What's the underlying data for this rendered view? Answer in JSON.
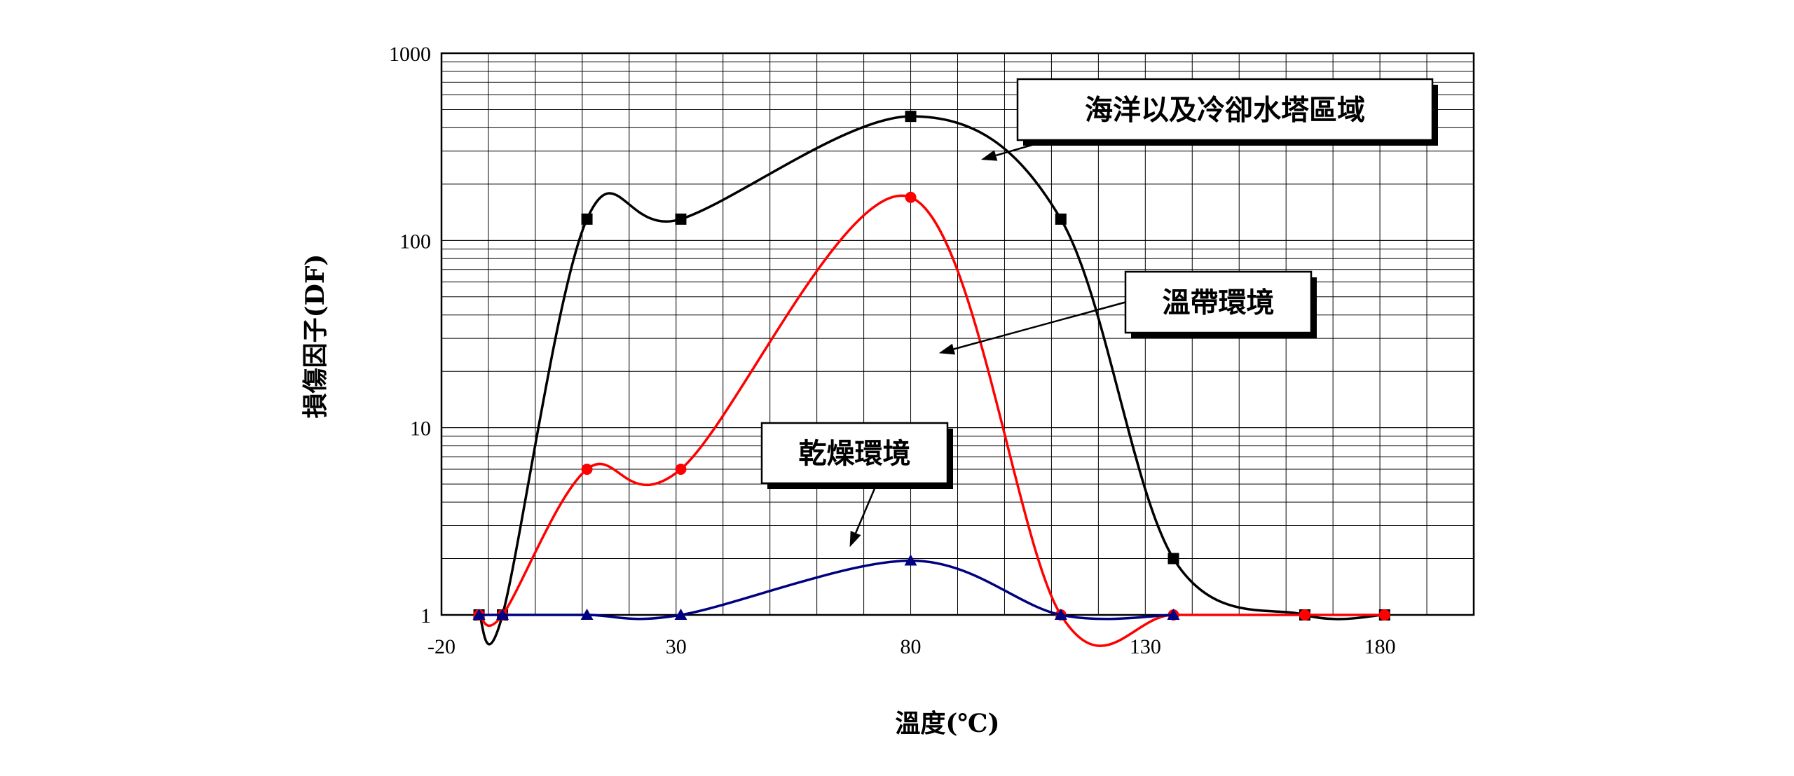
{
  "chart_data": {
    "type": "line",
    "title": "",
    "xlabel": "溫度(℃)",
    "ylabel": "損傷因子(DF)",
    "x_scale": "linear",
    "y_scale": "log",
    "xlim": [
      -20,
      200
    ],
    "ylim": [
      1,
      1000
    ],
    "x_ticks": [
      -20,
      30,
      80,
      130,
      180
    ],
    "y_ticks": [
      1,
      10,
      100,
      1000
    ],
    "grid": true,
    "series": [
      {
        "name": "海洋以及冷卻水塔區域",
        "color": "#000000",
        "marker": "square",
        "x": [
          -12,
          -7,
          11,
          31,
          80,
          112,
          136,
          164,
          181
        ],
        "y": [
          1,
          1,
          130,
          130,
          460,
          130,
          2,
          1,
          1
        ]
      },
      {
        "name": "溫帶環境",
        "color": "#ff0000",
        "marker": "circle",
        "x": [
          -12,
          -7,
          11,
          31,
          80,
          112,
          136,
          164,
          181
        ],
        "y": [
          1,
          1,
          6,
          6,
          170,
          1,
          1,
          1,
          1
        ]
      },
      {
        "name": "乾燥環境",
        "color": "#000080",
        "marker": "triangle",
        "x": [
          -12,
          -7,
          11,
          31,
          80,
          112,
          136
        ],
        "y": [
          1,
          1,
          1,
          1,
          1.95,
          1,
          1
        ]
      }
    ],
    "annotations": [
      {
        "text": "海洋以及冷卻水塔區域",
        "series": 0
      },
      {
        "text": "溫帶環境",
        "series": 1
      },
      {
        "text": "乾燥環境",
        "series": 2
      }
    ]
  }
}
